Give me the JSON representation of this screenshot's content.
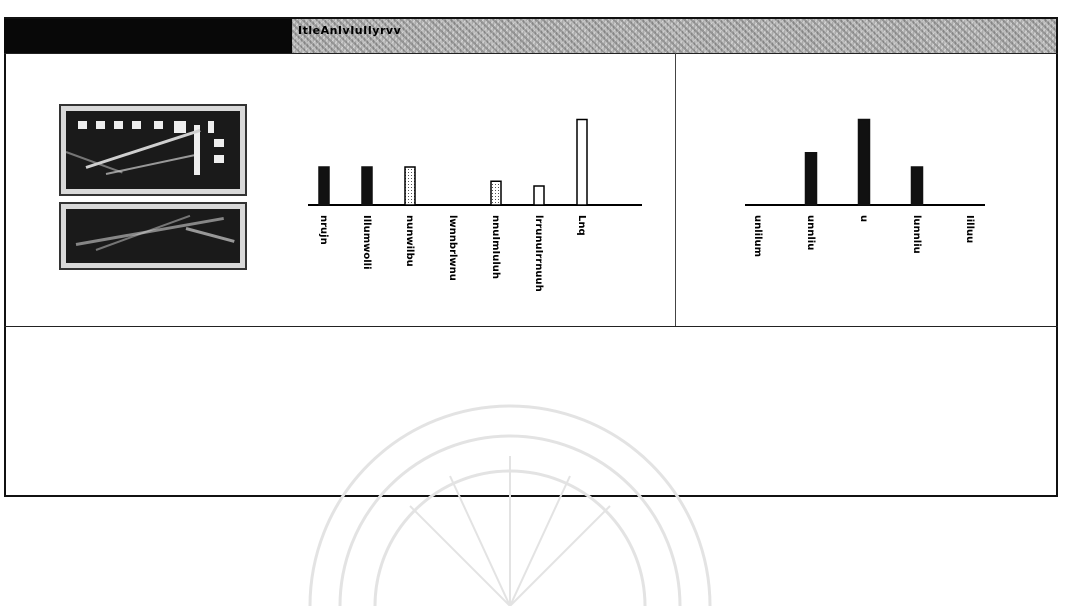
{
  "header": {
    "title": "ItleAnIvIuIIyrvv"
  },
  "colors": {
    "bar_dark": "#111111",
    "bar_light": "#ffffff",
    "bar_pattern": "#d8d8d8",
    "axis": "#000000"
  },
  "thumbnails": [
    {
      "name": "building-photo"
    },
    {
      "name": "landscape-photo"
    }
  ],
  "chart_data": [
    {
      "type": "bar",
      "categories": [
        "nrujn",
        "Illumwolli",
        "nunwilbu",
        "lwnnbrlwnu",
        "nnuImIuluh",
        "lrrunuIrrnuuh",
        "Lnq"
      ],
      "values": [
        40,
        40,
        40,
        0,
        25,
        20,
        90
      ],
      "fills": [
        "dark",
        "dark",
        "pattern",
        "none",
        "pattern",
        "light",
        "light"
      ],
      "ylim": [
        0,
        100
      ],
      "grid": false,
      "title": "",
      "xlabel": "",
      "ylabel": ""
    },
    {
      "type": "bar",
      "categories": [
        "unlilum",
        "unnliu",
        "u",
        "lunnliu",
        "Iilluu"
      ],
      "values": [
        0,
        55,
        90,
        40,
        0
      ],
      "fills": [
        "none",
        "dark",
        "dark",
        "dark",
        "none"
      ],
      "ylim": [
        0,
        100
      ],
      "grid": false,
      "title": "",
      "xlabel": "",
      "ylabel": ""
    }
  ]
}
